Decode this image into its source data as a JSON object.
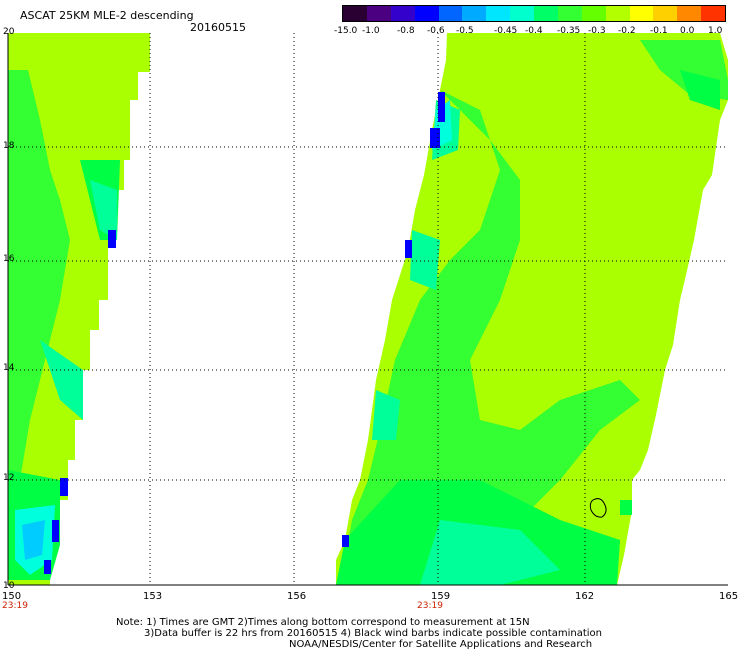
{
  "header": {
    "title": "ASCAT 25KM MLE-2 descending",
    "date": "20160515"
  },
  "colorbar": {
    "colors": [
      "#2a0033",
      "#4b0082",
      "#3300cc",
      "#0000ff",
      "#0066ff",
      "#00aaff",
      "#00e6ff",
      "#00ffcc",
      "#00ff66",
      "#33ff33",
      "#66ff00",
      "#b3ff00",
      "#ffff00",
      "#ffd000",
      "#ff8800",
      "#ff3300"
    ],
    "labels": [
      "-15.0",
      "-1.0",
      "-0.8",
      "-0.6",
      "-0.5",
      "-0.45",
      "-0.4",
      "-0.35",
      "-0.3",
      "-0.2",
      "-0.1",
      "0.0",
      "1.0"
    ]
  },
  "axes": {
    "lon_labels": [
      "150",
      "153",
      "156",
      "159",
      "162",
      "165"
    ],
    "lat_labels": [
      "20",
      "18",
      "16",
      "14",
      "12",
      "10"
    ],
    "times": [
      {
        "lon": "150",
        "text": "23:19"
      },
      {
        "lon": "159",
        "text": "23:19"
      }
    ]
  },
  "notes": {
    "line1": "Note: 1) Times are GMT 2)Times along bottom correspond to measurement at 15N",
    "line2": "3)Data buffer is 22 hrs from 20160515 4) Black wind barbs indicate possible contamination",
    "line3": "NOAA/NESDIS/Center for Satellite Applications and Research"
  },
  "swath_colors": {
    "lime": "#aaff00",
    "green": "#33ff33",
    "bright_green": "#00ff44",
    "aqua_green": "#00ff99",
    "cyan": "#00ffdd",
    "light_blue": "#00ccff",
    "blue": "#0000ff"
  }
}
